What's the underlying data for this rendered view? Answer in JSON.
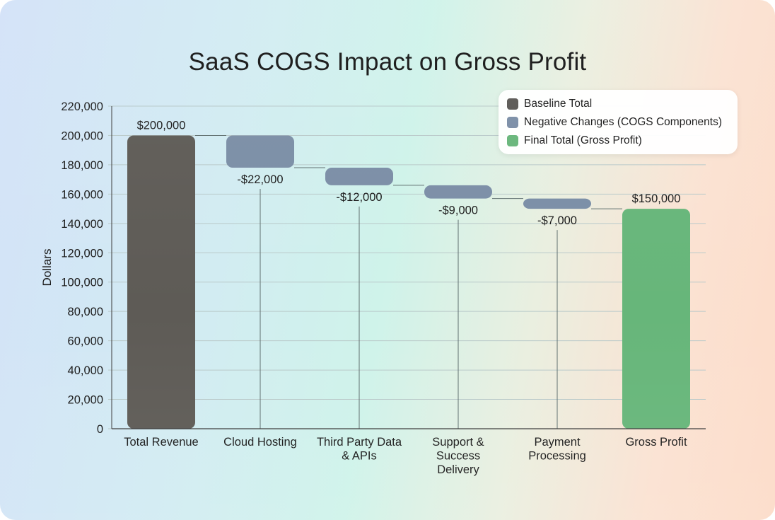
{
  "title": "SaaS COGS Impact on Gross Profit",
  "legend": {
    "items": [
      {
        "label": "Baseline Total",
        "color": "#5b5955"
      },
      {
        "label": "Negative Changes (COGS Components)",
        "color": "#7b8ea6"
      },
      {
        "label": "Final Total (Gross Profit)",
        "color": "#68b67a"
      }
    ]
  },
  "colors": {
    "baseline": "#5e5b56",
    "negative": "#7b8ea6",
    "final": "#67b67a",
    "grid": "#b9c9c9",
    "axis": "#3a3a3a",
    "connector": "#5e6e6e"
  },
  "chart_data": {
    "type": "waterfall",
    "title": "SaaS COGS Impact on Gross Profit",
    "xlabel": "",
    "ylabel": "Dollars",
    "ylim": [
      0,
      220000
    ],
    "yticks": [
      0,
      20000,
      40000,
      60000,
      80000,
      100000,
      120000,
      140000,
      160000,
      180000,
      200000,
      220000
    ],
    "ytick_labels": [
      "0",
      "20,000",
      "40,000",
      "60,000",
      "80,000",
      "100,000",
      "120,000",
      "140,000",
      "160,000",
      "180,000",
      "200,000",
      "220,000"
    ],
    "grid": true,
    "legend_position": "upper right",
    "categories": [
      "Total Revenue",
      "Cloud Hosting",
      "Third Party Data & APIs",
      "Support & Success Delivery",
      "Payment Processing",
      "Gross Profit"
    ],
    "category_lines": [
      [
        "Total Revenue"
      ],
      [
        "Cloud Hosting"
      ],
      [
        "Third Party Data",
        "& APIs"
      ],
      [
        "Support &",
        "Success",
        "Delivery"
      ],
      [
        "Payment",
        "Processing"
      ],
      [
        "Gross Profit"
      ]
    ],
    "values": [
      200000,
      -22000,
      -12000,
      -9000,
      -7000,
      150000
    ],
    "kinds": [
      "baseline",
      "negative",
      "negative",
      "negative",
      "negative",
      "final"
    ],
    "data_labels": [
      "$200,000",
      "-$22,000",
      "-$12,000",
      "-$9,000",
      "-$7,000",
      "$150,000"
    ],
    "series": [
      {
        "name": "Baseline Total",
        "values": [
          200000,
          null,
          null,
          null,
          null,
          null
        ]
      },
      {
        "name": "Negative Changes (COGS Components)",
        "values": [
          null,
          -22000,
          -12000,
          -9000,
          -7000,
          null
        ]
      },
      {
        "name": "Final Total (Gross Profit)",
        "values": [
          null,
          null,
          null,
          null,
          null,
          150000
        ]
      }
    ]
  }
}
